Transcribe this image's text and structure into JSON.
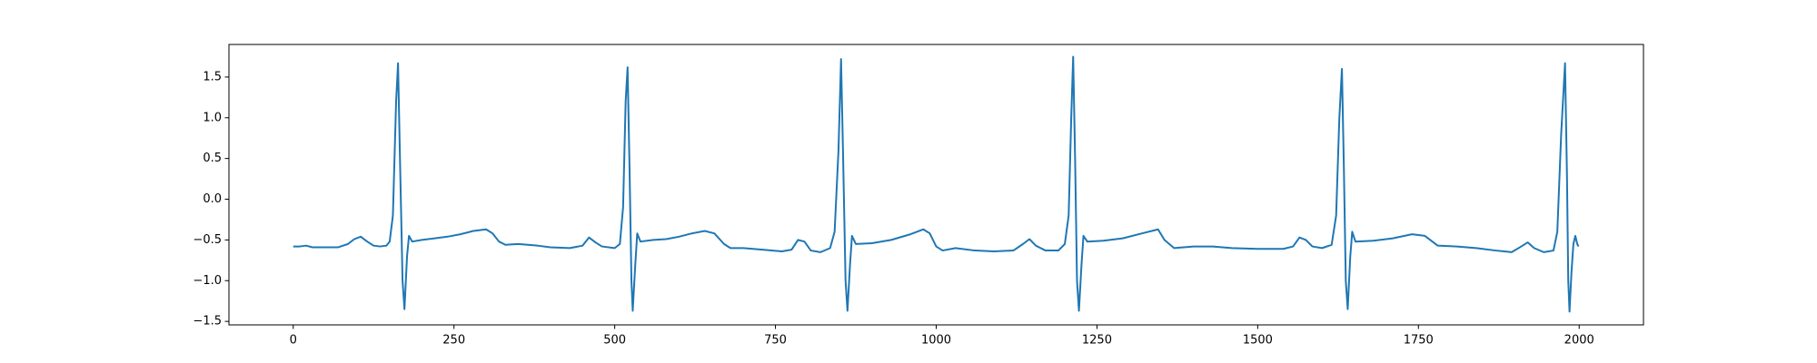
{
  "chart_data": {
    "type": "line",
    "x": [
      0,
      10,
      20,
      30,
      50,
      70,
      85,
      95,
      105,
      115,
      125,
      135,
      145,
      150,
      155,
      160,
      163,
      166,
      170,
      173,
      177,
      180,
      185,
      200,
      220,
      240,
      260,
      280,
      300,
      310,
      320,
      330,
      350,
      380,
      400,
      430,
      450,
      460,
      470,
      480,
      500,
      508,
      513,
      517,
      520,
      523,
      526,
      528,
      532,
      535,
      540,
      560,
      580,
      600,
      620,
      640,
      655,
      670,
      680,
      700,
      730,
      760,
      775,
      785,
      795,
      805,
      820,
      835,
      842,
      848,
      852,
      855,
      859,
      862,
      866,
      869,
      875,
      900,
      930,
      960,
      980,
      990,
      1000,
      1010,
      1030,
      1060,
      1090,
      1120,
      1135,
      1145,
      1155,
      1170,
      1190,
      1200,
      1206,
      1210,
      1213,
      1216,
      1219,
      1222,
      1226,
      1229,
      1235,
      1260,
      1290,
      1320,
      1345,
      1355,
      1370,
      1400,
      1430,
      1460,
      1500,
      1540,
      1555,
      1565,
      1575,
      1585,
      1600,
      1615,
      1622,
      1627,
      1631,
      1634,
      1637,
      1640,
      1644,
      1647,
      1652,
      1680,
      1710,
      1740,
      1760,
      1780,
      1810,
      1840,
      1870,
      1895,
      1910,
      1920,
      1930,
      1945,
      1960,
      1966,
      1972,
      1978,
      1981,
      1983,
      1985,
      1988,
      1991,
      1994,
      1997,
      1999
    ],
    "series": [
      {
        "color": "#1f77b4",
        "values": [
          -0.58,
          -0.58,
          -0.57,
          -0.59,
          -0.59,
          -0.59,
          -0.55,
          -0.49,
          -0.46,
          -0.52,
          -0.57,
          -0.58,
          -0.57,
          -0.52,
          -0.2,
          1.2,
          1.67,
          0.5,
          -1.0,
          -1.35,
          -0.7,
          -0.45,
          -0.52,
          -0.5,
          -0.48,
          -0.46,
          -0.43,
          -0.39,
          -0.37,
          -0.42,
          -0.52,
          -0.56,
          -0.55,
          -0.57,
          -0.59,
          -0.6,
          -0.57,
          -0.47,
          -0.53,
          -0.58,
          -0.6,
          -0.55,
          -0.1,
          1.2,
          1.62,
          0.4,
          -1.0,
          -1.37,
          -0.8,
          -0.42,
          -0.52,
          -0.5,
          -0.49,
          -0.46,
          -0.42,
          -0.39,
          -0.42,
          -0.55,
          -0.6,
          -0.6,
          -0.62,
          -0.64,
          -0.62,
          -0.5,
          -0.52,
          -0.63,
          -0.65,
          -0.6,
          -0.4,
          0.6,
          1.72,
          0.6,
          -1.0,
          -1.37,
          -0.8,
          -0.45,
          -0.55,
          -0.54,
          -0.5,
          -0.43,
          -0.37,
          -0.42,
          -0.58,
          -0.63,
          -0.6,
          -0.63,
          -0.64,
          -0.63,
          -0.55,
          -0.49,
          -0.57,
          -0.63,
          -0.63,
          -0.55,
          -0.2,
          1.0,
          1.75,
          0.5,
          -1.0,
          -1.37,
          -0.8,
          -0.45,
          -0.52,
          -0.51,
          -0.48,
          -0.42,
          -0.37,
          -0.5,
          -0.6,
          -0.58,
          -0.58,
          -0.6,
          -0.61,
          -0.61,
          -0.58,
          -0.47,
          -0.5,
          -0.58,
          -0.6,
          -0.56,
          -0.2,
          1.0,
          1.6,
          0.4,
          -1.0,
          -1.35,
          -0.7,
          -0.4,
          -0.52,
          -0.51,
          -0.48,
          -0.43,
          -0.45,
          -0.57,
          -0.58,
          -0.6,
          -0.63,
          -0.65,
          -0.58,
          -0.53,
          -0.6,
          -0.65,
          -0.63,
          -0.4,
          0.8,
          1.67,
          0.3,
          -1.0,
          -1.38,
          -0.9,
          -0.55,
          -0.45,
          -0.55,
          -0.58
        ]
      }
    ],
    "xlim": [
      -100,
      2100
    ],
    "ylim": [
      -1.543,
      1.9
    ],
    "xticks": [
      0,
      250,
      500,
      750,
      1000,
      1250,
      1500,
      1750,
      2000
    ],
    "yticks": [
      {
        "value": -1.5,
        "label": "−1.5"
      },
      {
        "value": -1.0,
        "label": "−1.0"
      },
      {
        "value": -0.5,
        "label": "−0.5"
      },
      {
        "value": 0,
        "label": "0.0"
      },
      {
        "value": 0.5,
        "label": "0.5"
      },
      {
        "value": 1.0,
        "label": "1.0"
      },
      {
        "value": 1.5,
        "label": "1.5"
      }
    ]
  }
}
